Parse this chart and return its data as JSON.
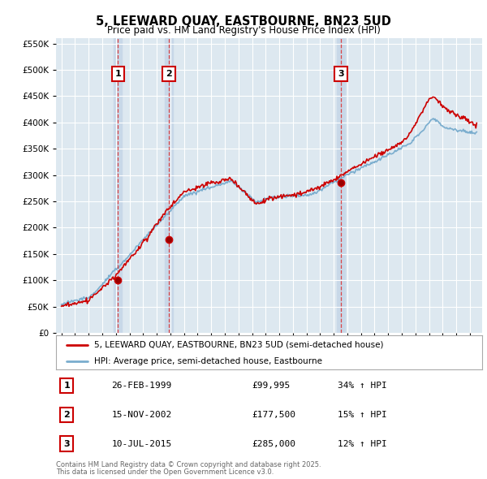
{
  "title": "5, LEEWARD QUAY, EASTBOURNE, BN23 5UD",
  "subtitle": "Price paid vs. HM Land Registry's House Price Index (HPI)",
  "legend_label_red": "5, LEEWARD QUAY, EASTBOURNE, BN23 5UD (semi-detached house)",
  "legend_label_blue": "HPI: Average price, semi-detached house, Eastbourne",
  "footer_line1": "Contains HM Land Registry data © Crown copyright and database right 2025.",
  "footer_line2": "This data is licensed under the Open Government Licence v3.0.",
  "sales": [
    {
      "label": "1",
      "date_num": 1999.15,
      "price": 99995,
      "date_str": "26-FEB-1999",
      "pct": "34% ↑ HPI"
    },
    {
      "label": "2",
      "date_num": 2002.88,
      "price": 177500,
      "date_str": "15-NOV-2002",
      "pct": "15% ↑ HPI"
    },
    {
      "label": "3",
      "date_num": 2015.52,
      "price": 285000,
      "date_str": "10-JUL-2015",
      "pct": "12% ↑ HPI"
    }
  ],
  "vline_dates": [
    1999.15,
    2002.88,
    2015.52
  ],
  "ylim": [
    0,
    560000
  ],
  "yticks": [
    0,
    50000,
    100000,
    150000,
    200000,
    250000,
    300000,
    350000,
    400000,
    450000,
    500000,
    550000
  ],
  "xlim_left": 1994.6,
  "xlim_right": 2025.9,
  "background_color": "#ffffff",
  "plot_bg_color": "#dde8f0",
  "grid_color": "#ffffff",
  "red_color": "#cc0000",
  "blue_color": "#7aadce",
  "vline_color": "#dd3333",
  "highlight_color": "#c8d8e8"
}
